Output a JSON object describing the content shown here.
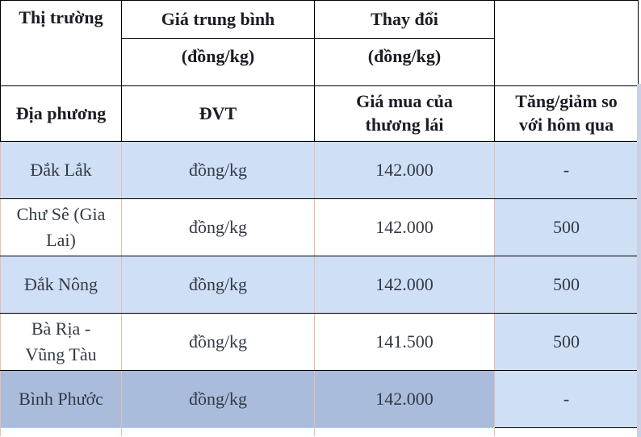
{
  "colors": {
    "row_light_blue": "#cfdff5",
    "row_dark_blue": "#aabcdc",
    "cell_border_salmon": "#e8beac",
    "header_border_black": "#000000",
    "right_strip": "#c8d1e5",
    "header_text": "#1b1b26",
    "data_text": "#333a45"
  },
  "table": {
    "header_row1": {
      "market": "Thị trường",
      "avg_price": "Giá trung bình",
      "change": "Thay đổi"
    },
    "header_row2": {
      "avg_price_unit": "(đồng/kg)",
      "change_unit": "(đồng/kg)"
    },
    "header_row3": {
      "location": "Địa phương",
      "unit": "ĐVT",
      "buy_price": "Giá mua của thương lái",
      "change_vs_yesterday": "Tăng/giảm so với hôm qua"
    },
    "rows": [
      {
        "region": "Đắk Lắk",
        "unit": "đồng/kg",
        "price": "142.000",
        "change": "-",
        "shade": "blue"
      },
      {
        "region": "Chư Sê (Gia Lai)",
        "unit": "đồng/kg",
        "price": "142.000",
        "change": "500",
        "shade": "white"
      },
      {
        "region": "Đắk Nông",
        "unit": "đồng/kg",
        "price": "142.000",
        "change": "500",
        "shade": "blue"
      },
      {
        "region": "Bà Rịa - Vũng Tàu",
        "unit": "đồng/kg",
        "price": "141.500",
        "change": "500",
        "shade": "white"
      },
      {
        "region": "Bình Phước",
        "unit": "đồng/kg",
        "price": "142.000",
        "change": "-",
        "shade": "dark"
      }
    ]
  }
}
